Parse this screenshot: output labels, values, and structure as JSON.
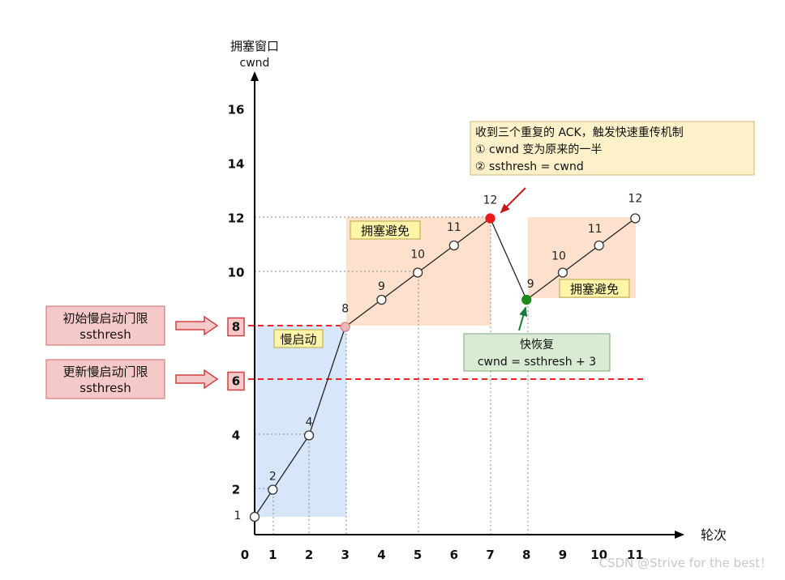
{
  "axes": {
    "y_title_line1": "拥塞窗口",
    "y_title_line2": "cwnd",
    "x_title": "轮次",
    "x_ticks": [
      "0",
      "1",
      "2",
      "3",
      "4",
      "5",
      "6",
      "7",
      "8",
      "9",
      "10",
      "11"
    ],
    "y_ticks": [
      "2",
      "4",
      "6",
      "8",
      "10",
      "12",
      "14",
      "16"
    ],
    "y_ticks_highlighted": [
      "6",
      "8"
    ],
    "origin_value_label": "1"
  },
  "chart_data": {
    "type": "line",
    "x_range": [
      0,
      11
    ],
    "y_range": [
      0,
      16
    ],
    "points": [
      {
        "x": 0,
        "y": 1,
        "label": "",
        "color": "#ffffff"
      },
      {
        "x": 0.5,
        "y": 2,
        "label": "2",
        "color": "#ffffff"
      },
      {
        "x": 1.5,
        "y": 4,
        "label": "4",
        "color": "#ffffff"
      },
      {
        "x": 2.5,
        "y": 8,
        "label": "8",
        "color": "#f4b6b6"
      },
      {
        "x": 3.5,
        "y": 9,
        "label": "9",
        "color": "#ffffff"
      },
      {
        "x": 4.5,
        "y": 10,
        "label": "10",
        "color": "#ffffff"
      },
      {
        "x": 5.5,
        "y": 11,
        "label": "11",
        "color": "#ffffff"
      },
      {
        "x": 6.5,
        "y": 12,
        "label": "12",
        "color": "#e81c1c"
      },
      {
        "x": 7.5,
        "y": 9,
        "label": "9",
        "color": "#1a8a1a"
      },
      {
        "x": 8.5,
        "y": 10,
        "label": "10",
        "color": "#ffffff"
      },
      {
        "x": 9.5,
        "y": 11,
        "label": "11",
        "color": "#ffffff"
      },
      {
        "x": 10.5,
        "y": 12,
        "label": "12",
        "color": "#ffffff"
      }
    ],
    "thresholds": [
      {
        "y": 8,
        "color": "#e82828"
      },
      {
        "y": 6,
        "color": "#e82828"
      }
    ],
    "regions": [
      {
        "label": "慢启动",
        "x": [
          0,
          2.5
        ],
        "y": [
          1,
          8
        ],
        "color": "#d7e6f8"
      },
      {
        "label": "拥塞避免",
        "x": [
          2.5,
          6.5
        ],
        "y": [
          8,
          12
        ],
        "color": "#fde1cc"
      },
      {
        "label": "拥塞避免",
        "x": [
          7.5,
          10.5
        ],
        "y": [
          9,
          12
        ],
        "color": "#fde1cc"
      }
    ]
  },
  "annotations": {
    "initial_threshold": {
      "line1": "初始慢启动门限",
      "line2": "ssthresh"
    },
    "updated_threshold": {
      "line1": "更新慢启动门限",
      "line2": "ssthresh"
    },
    "region_slow_start": "慢启动",
    "region_avoid_1": "拥塞避免",
    "region_avoid_2": "拥塞避免",
    "event_box": {
      "line1": "收到三个重复的 ACK，触发快速重传机制",
      "line2": "① cwnd 变为原来的一半",
      "line3": "② ssthresh = cwnd"
    },
    "fast_recovery": {
      "line1": "快恢复",
      "line2": "cwnd = ssthresh + 3"
    }
  },
  "watermark": "CSDN @Strive for the best！",
  "colors": {
    "threshold_red": "#e82828",
    "slow_start_blue": "#d7e6f8",
    "avoid_orange": "#fde1cc",
    "label_yellow": "#fff5a8",
    "event_box": "#fdf1c9",
    "recovery_box": "#d9ebd3",
    "threshold_box": "#f6c9c9"
  }
}
